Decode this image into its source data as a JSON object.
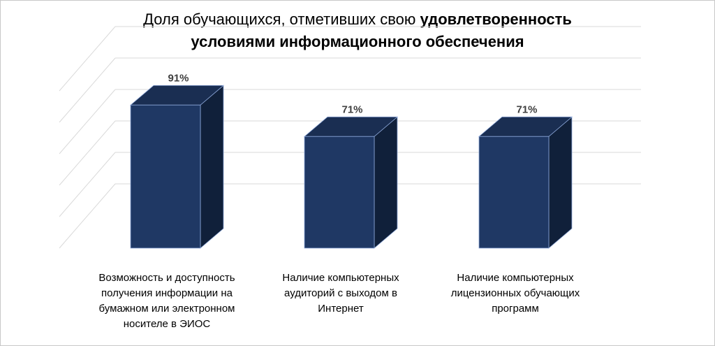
{
  "chart_data": {
    "type": "bar",
    "title_part1": "Доля обучающихся, отметивших свою ",
    "title_part2": "удовлетворенность",
    "title_line2": "условиями информационного обеспечения",
    "categories": [
      "Возможность и доступность получения информации на бумажном или электронном носителе в ЭИОС",
      "Наличие компьютерных аудиторий с выходом в Интернет",
      "Наличие компьютерных лицензионных обучающих программ"
    ],
    "category_lines": [
      "Возможность и доступность\nполучения информации на\nбумажном или электронном\nносителе в ЭИОС",
      "Наличие компьютерных\nаудиторий с выходом в\nИнтернет",
      "Наличие компьютерных\nлицензионных обучающих\nпрограмм"
    ],
    "values": [
      91,
      71,
      71
    ],
    "value_labels": [
      "91%",
      "71%",
      "71%"
    ],
    "ylim": [
      0,
      100
    ],
    "grid": true,
    "colors": {
      "front": "#1f3864",
      "side": "#10203a",
      "top": "#1a2e52",
      "grid": "#d9d9d9",
      "edge": "#8ea9db"
    }
  }
}
